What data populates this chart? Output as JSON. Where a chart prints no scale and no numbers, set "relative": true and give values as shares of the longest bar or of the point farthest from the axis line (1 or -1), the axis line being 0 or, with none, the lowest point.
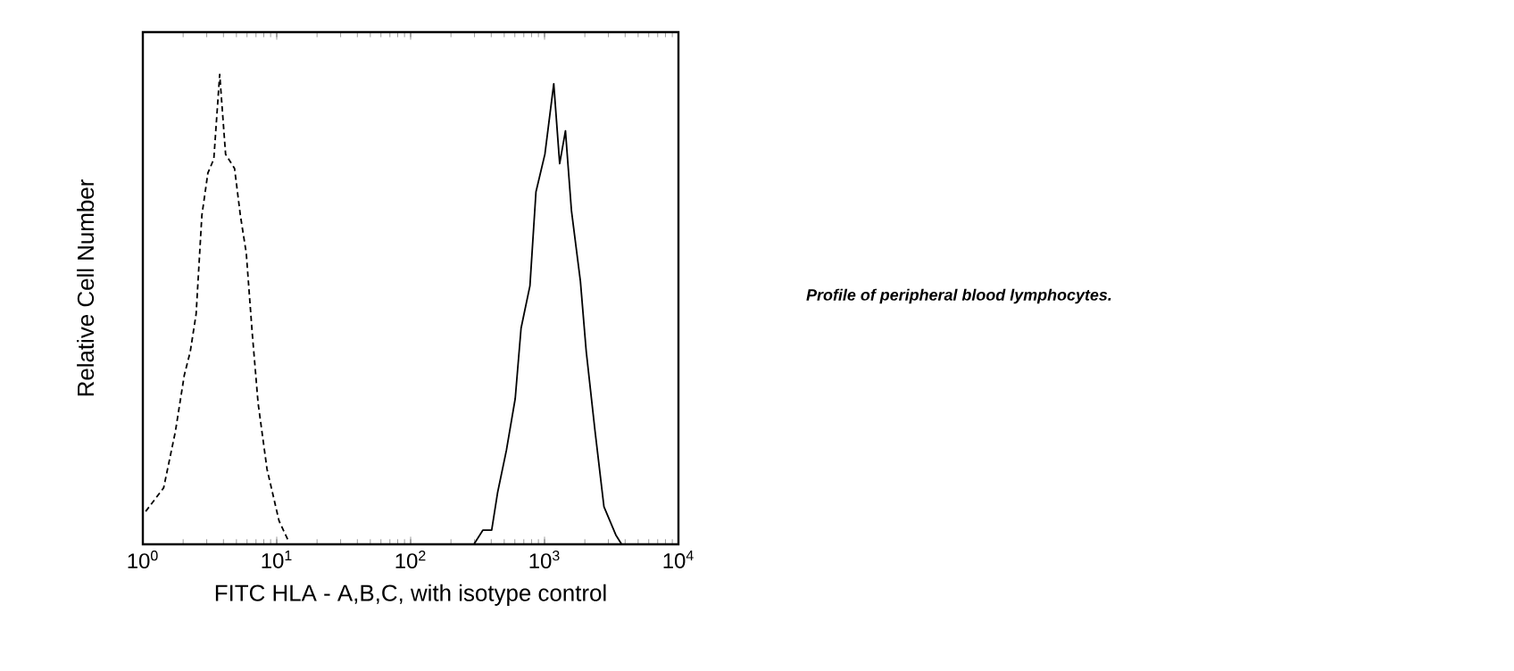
{
  "chart_data": {
    "type": "line",
    "relative": true,
    "log": "x",
    "xlabel": "FITC HLA - A,B,C, with isotype control",
    "ylabel": "Relative Cell Number",
    "xlim": [
      1,
      10000
    ],
    "xticks": [
      {
        "value": 1,
        "label": "10$^{0}$"
      },
      {
        "value": 10,
        "label": "10$^{1}$"
      },
      {
        "value": 100,
        "label": "10$^{2}$"
      },
      {
        "value": 1000,
        "label": "10$^{3}$"
      },
      {
        "value": 10000,
        "label": "10$^{4}$"
      }
    ],
    "annotations": [
      "*Profile of peripheral blood lymphocytes.*"
    ],
    "series": [
      {
        "color": "#000000",
        "line_style": "dashed",
        "x": [
          1.05,
          1.43,
          1.75,
          2.04,
          2.26,
          2.5,
          2.76,
          3.06,
          3.39,
          3.75,
          4.15,
          4.84,
          5.35,
          5.92,
          6.56,
          7.26,
          8.46,
          10.4,
          12.1
        ],
        "values": [
          0.07,
          0.12,
          0.24,
          0.36,
          0.41,
          0.49,
          0.7,
          0.79,
          0.82,
          1.0,
          0.83,
          0.8,
          0.7,
          0.62,
          0.45,
          0.3,
          0.16,
          0.05,
          0.01
        ]
      },
      {
        "color": "#000000",
        "line_style": "solid",
        "x": [
          297,
          346,
          403,
          446,
          519,
          604,
          668,
          778,
          863,
          1006,
          1172,
          1297,
          1433,
          1589,
          1853,
          2049,
          2385,
          2778,
          3405,
          3766
        ],
        "values": [
          0,
          0.03,
          0.03,
          0.11,
          0.2,
          0.31,
          0.46,
          0.55,
          0.75,
          0.83,
          0.98,
          0.81,
          0.88,
          0.71,
          0.56,
          0.41,
          0.24,
          0.08,
          0.02,
          0
        ]
      }
    ]
  }
}
